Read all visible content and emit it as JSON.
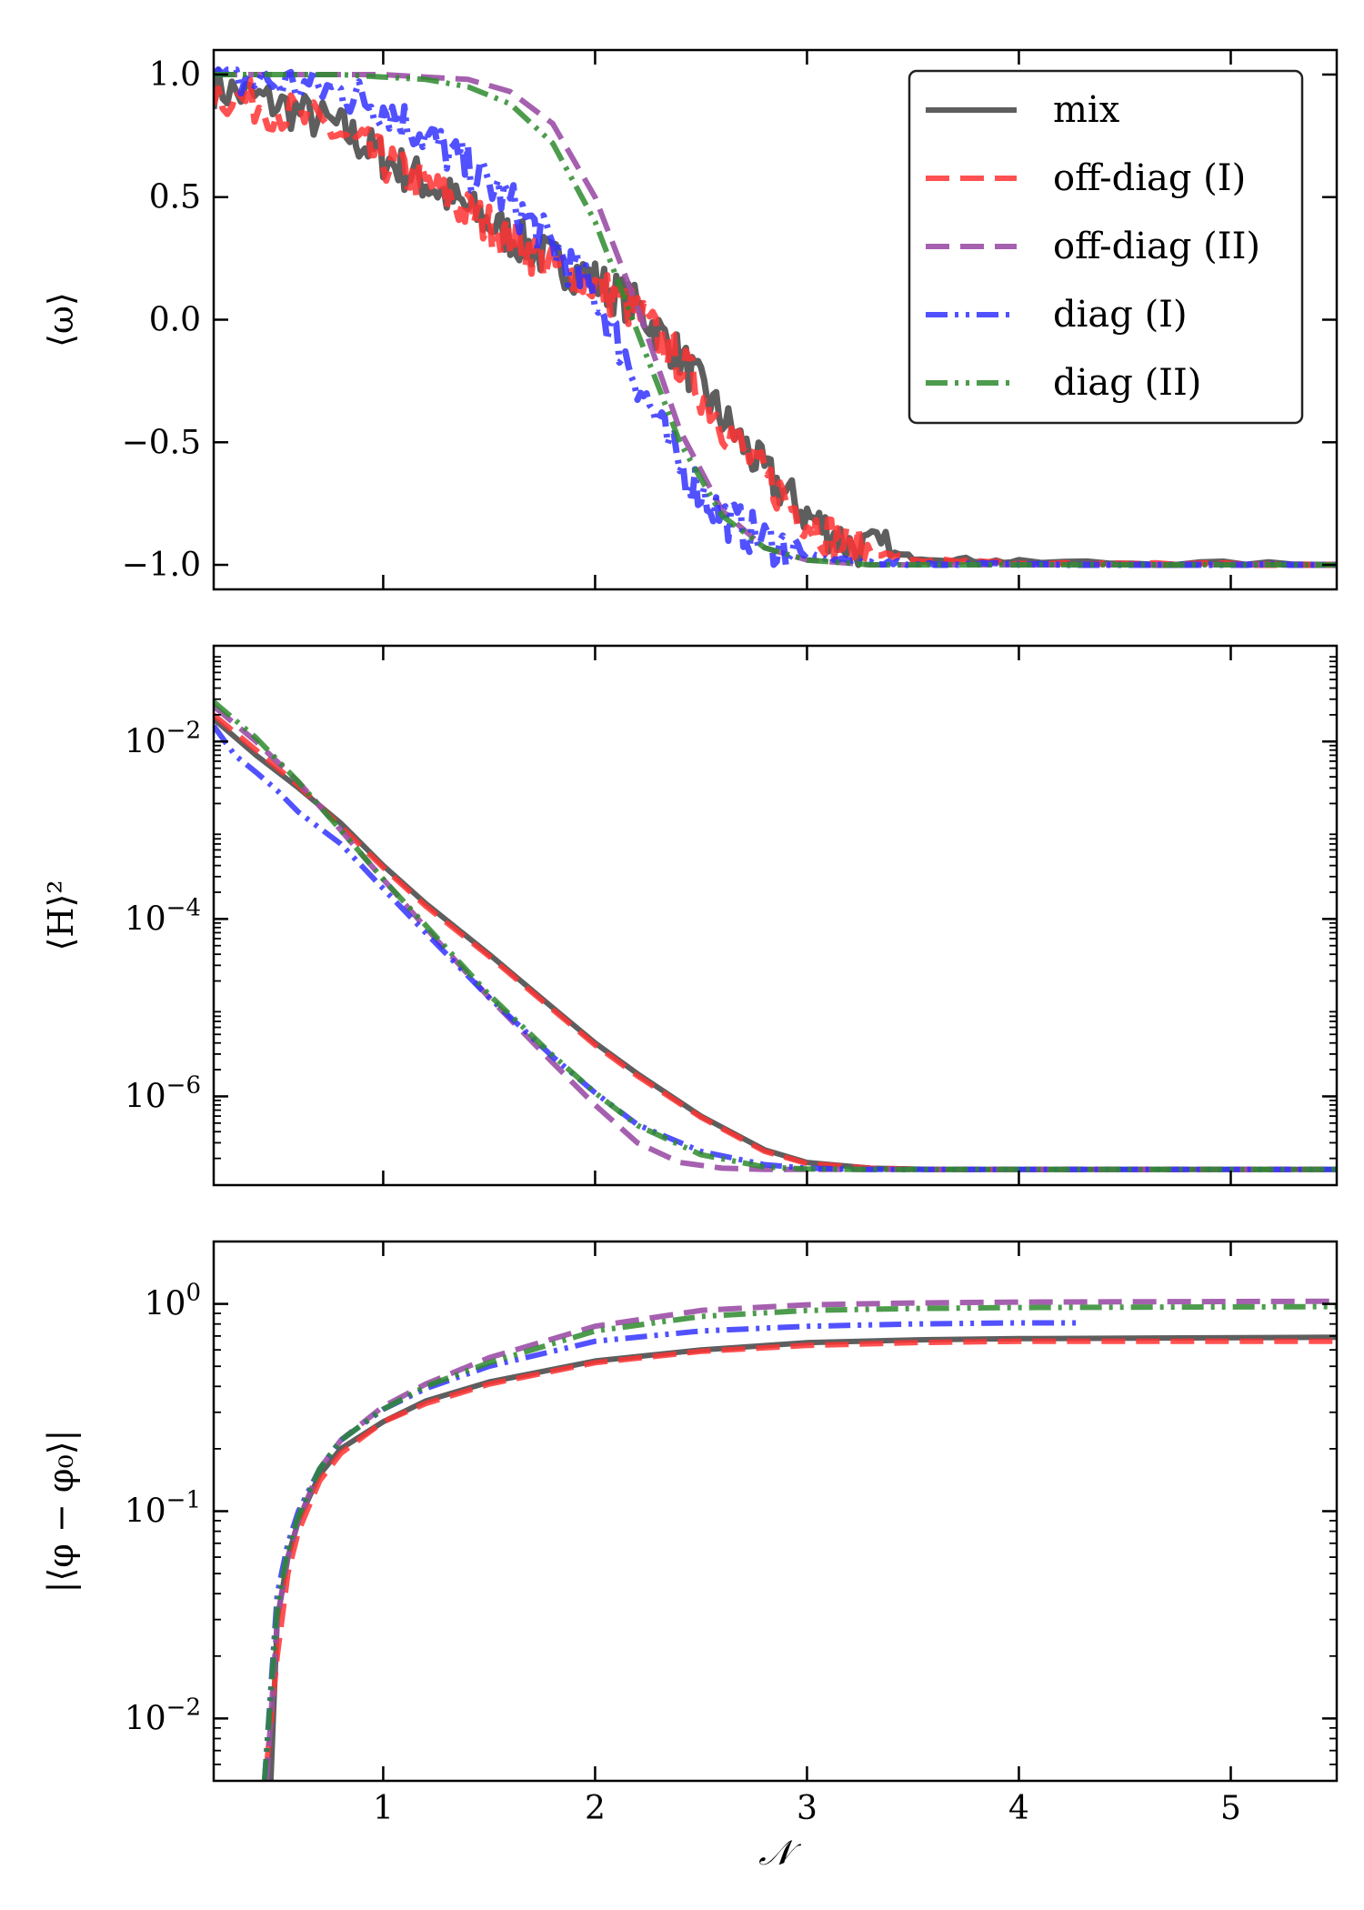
{
  "legend": {
    "entries": [
      {
        "series": "mix",
        "label": "mix"
      },
      {
        "series": "offdiag1",
        "label": "off-diag (I)"
      },
      {
        "series": "offdiag2",
        "label": "off-diag (II)"
      },
      {
        "series": "diag1",
        "label": "diag (I)"
      },
      {
        "series": "diag2",
        "label": "diag (II)"
      }
    ]
  },
  "series_styles": {
    "mix": {
      "color": "#4d4d4d",
      "dash": "solid",
      "alpha": 0.9
    },
    "offdiag1": {
      "color": "#ff3333",
      "dash": "dashed",
      "alpha": 0.85
    },
    "offdiag2": {
      "color": "#9b4fa6",
      "dash": "dashed",
      "alpha": 0.9
    },
    "diag1": {
      "color": "#3333ff",
      "dash": "dashdotdot",
      "alpha": 0.85
    },
    "diag2": {
      "color": "#2e8b2e",
      "dash": "dashdotdot",
      "alpha": 0.85
    }
  },
  "chart_data": [
    {
      "type": "line",
      "panel": "top",
      "ylabel": "⟨ω⟩",
      "xlabel": "",
      "xlim": [
        0.2,
        5.5
      ],
      "ylim": [
        -1.1,
        1.1
      ],
      "yscale": "linear",
      "yticks": [
        1.0,
        0.5,
        0.0,
        -0.5,
        -1.0
      ],
      "ytick_labels": [
        "1.0",
        "0.5",
        "0.0",
        "−0.5",
        "−1.0"
      ],
      "xticks": [
        1,
        2,
        3,
        4,
        5
      ],
      "xtick_labels": [
        "",
        "",
        "",
        "",
        ""
      ],
      "noise_note": "curves for mix, off-diag (I) and diag (I) are visibly jagged",
      "series": [
        {
          "key": "mix",
          "noisy": true,
          "x": [
            0.2,
            0.5,
            0.8,
            1.0,
            1.2,
            1.4,
            1.6,
            1.8,
            2.0,
            2.2,
            2.4,
            2.6,
            2.8,
            3.0,
            3.2,
            3.5,
            4.0,
            5.5
          ],
          "y": [
            0.95,
            0.88,
            0.78,
            0.66,
            0.56,
            0.45,
            0.34,
            0.24,
            0.16,
            0.05,
            -0.15,
            -0.4,
            -0.62,
            -0.8,
            -0.92,
            -0.97,
            -0.99,
            -1.0
          ]
        },
        {
          "key": "offdiag1",
          "noisy": true,
          "x": [
            0.2,
            0.5,
            0.8,
            1.0,
            1.2,
            1.4,
            1.6,
            1.8,
            2.0,
            2.2,
            2.4,
            2.6,
            2.8,
            3.0,
            3.2,
            3.5,
            4.0,
            5.5
          ],
          "y": [
            0.93,
            0.86,
            0.76,
            0.65,
            0.55,
            0.44,
            0.33,
            0.22,
            0.14,
            0.03,
            -0.17,
            -0.42,
            -0.64,
            -0.82,
            -0.93,
            -0.98,
            -1.0,
            -1.0
          ]
        },
        {
          "key": "offdiag2",
          "noisy": false,
          "x": [
            0.2,
            0.5,
            0.8,
            1.0,
            1.2,
            1.4,
            1.6,
            1.8,
            2.0,
            2.2,
            2.4,
            2.6,
            2.8,
            3.0,
            3.3,
            3.6,
            4.0,
            5.5
          ],
          "y": [
            1.0,
            1.0,
            1.0,
            1.0,
            0.99,
            0.98,
            0.93,
            0.8,
            0.5,
            0.05,
            -0.45,
            -0.78,
            -0.93,
            -0.98,
            -1.0,
            -1.0,
            -1.0,
            -1.0
          ]
        },
        {
          "key": "diag1",
          "noisy": true,
          "x": [
            0.2,
            0.5,
            0.8,
            1.0,
            1.2,
            1.4,
            1.6,
            1.8,
            2.0,
            2.2,
            2.4,
            2.6,
            2.8,
            3.0,
            3.3,
            3.6,
            4.0,
            5.5
          ],
          "y": [
            0.98,
            0.97,
            0.93,
            0.87,
            0.75,
            0.62,
            0.48,
            0.3,
            0.1,
            -0.25,
            -0.6,
            -0.8,
            -0.9,
            -0.96,
            -0.99,
            -1.0,
            -1.0,
            -1.0
          ]
        },
        {
          "key": "diag2",
          "noisy": false,
          "x": [
            0.2,
            0.5,
            0.8,
            1.0,
            1.2,
            1.4,
            1.6,
            1.8,
            2.0,
            2.2,
            2.4,
            2.6,
            2.8,
            3.0,
            3.3,
            3.6,
            4.0,
            5.5
          ],
          "y": [
            1.0,
            1.0,
            1.0,
            0.99,
            0.98,
            0.95,
            0.88,
            0.72,
            0.4,
            -0.05,
            -0.5,
            -0.8,
            -0.93,
            -0.98,
            -1.0,
            -1.0,
            -1.0,
            -1.0
          ]
        }
      ]
    },
    {
      "type": "line",
      "panel": "middle",
      "ylabel": "⟨H⟩²",
      "xlabel": "",
      "xlim": [
        0.2,
        5.5
      ],
      "ylim": [
        1e-07,
        0.12
      ],
      "yscale": "log",
      "yticks": [
        0.01,
        0.0001,
        1e-06
      ],
      "ytick_labels": [
        {
          "base": "10",
          "exp": "−2"
        },
        {
          "base": "10",
          "exp": "−4"
        },
        {
          "base": "10",
          "exp": "−6"
        }
      ],
      "xticks": [
        1,
        2,
        3,
        4,
        5
      ],
      "xtick_labels": [
        "",
        "",
        "",
        "",
        ""
      ],
      "series": [
        {
          "key": "mix",
          "x": [
            0.2,
            0.4,
            0.6,
            0.8,
            1.0,
            1.2,
            1.5,
            1.8,
            2.0,
            2.2,
            2.5,
            2.8,
            3.0,
            3.3,
            3.6,
            4.0,
            5.5
          ],
          "y": [
            0.018,
            0.007,
            0.003,
            0.0012,
            0.0004,
            0.00015,
            4e-05,
            1e-05,
            4e-06,
            1.8e-06,
            6e-07,
            2.5e-07,
            1.8e-07,
            1.55e-07,
            1.5e-07,
            1.5e-07,
            1.5e-07
          ]
        },
        {
          "key": "offdiag1",
          "x": [
            0.2,
            0.4,
            0.6,
            0.8,
            1.0,
            1.2,
            1.5,
            1.8,
            2.0,
            2.2,
            2.5,
            2.8,
            3.0,
            3.3,
            3.6,
            4.0,
            5.5
          ],
          "y": [
            0.02,
            0.008,
            0.0032,
            0.0011,
            0.00038,
            0.00014,
            3.8e-05,
            9.5e-06,
            3.8e-06,
            1.7e-06,
            5.8e-07,
            2.4e-07,
            1.75e-07,
            1.55e-07,
            1.5e-07,
            1.5e-07,
            1.5e-07
          ]
        },
        {
          "key": "offdiag2",
          "x": [
            0.2,
            0.4,
            0.6,
            0.8,
            1.0,
            1.2,
            1.5,
            1.8,
            2.0,
            2.2,
            2.4,
            2.6,
            2.8,
            3.0,
            3.5,
            5.5
          ],
          "y": [
            0.025,
            0.01,
            0.0035,
            0.001,
            0.00028,
            8e-05,
            1.3e-05,
            2.4e-06,
            8e-07,
            3e-07,
            1.8e-07,
            1.55e-07,
            1.5e-07,
            1.5e-07,
            1.5e-07,
            1.5e-07
          ]
        },
        {
          "key": "diag1",
          "x": [
            0.2,
            0.3,
            0.4,
            0.5,
            0.6,
            0.8,
            1.0,
            1.2,
            1.5,
            1.8,
            2.0,
            2.2,
            2.5,
            2.8,
            3.0,
            3.3,
            3.6,
            4.0,
            5.5
          ],
          "y": [
            0.015,
            0.007,
            0.0045,
            0.0028,
            0.0016,
            0.0007,
            0.00022,
            7e-05,
            1.3e-05,
            2.8e-06,
            1.1e-06,
            4.8e-07,
            2.4e-07,
            1.7e-07,
            1.55e-07,
            1.5e-07,
            1.5e-07,
            1.5e-07,
            1.5e-07
          ]
        },
        {
          "key": "diag2",
          "x": [
            0.2,
            0.4,
            0.6,
            0.8,
            1.0,
            1.2,
            1.5,
            1.8,
            2.0,
            2.2,
            2.5,
            2.8,
            3.0,
            3.3,
            3.6,
            5.5
          ],
          "y": [
            0.028,
            0.011,
            0.0035,
            0.001,
            0.00028,
            8.5e-05,
            1.4e-05,
            2.9e-06,
            1.1e-06,
            4.7e-07,
            2.2e-07,
            1.6e-07,
            1.52e-07,
            1.5e-07,
            1.5e-07,
            1.5e-07
          ]
        }
      ]
    },
    {
      "type": "line",
      "panel": "bottom",
      "ylabel": "|⟨φ − φ₀⟩|",
      "xlabel": "𝒩",
      "xlim": [
        0.2,
        5.5
      ],
      "ylim": [
        0.005,
        2.0
      ],
      "yscale": "log",
      "yticks": [
        1.0,
        0.1,
        0.01
      ],
      "ytick_labels": [
        {
          "base": "10",
          "exp": "0"
        },
        {
          "base": "10",
          "exp": "−1"
        },
        {
          "base": "10",
          "exp": "−2"
        }
      ],
      "xticks": [
        1,
        2,
        3,
        4,
        5
      ],
      "xtick_labels": [
        "1",
        "2",
        "3",
        "4",
        "5"
      ],
      "series": [
        {
          "key": "mix",
          "x": [
            0.47,
            0.5,
            0.55,
            0.6,
            0.7,
            0.8,
            1.0,
            1.2,
            1.5,
            2.0,
            2.5,
            3.0,
            3.5,
            4.0,
            5.5
          ],
          "y": [
            0.005,
            0.03,
            0.06,
            0.09,
            0.15,
            0.2,
            0.27,
            0.34,
            0.42,
            0.53,
            0.6,
            0.65,
            0.67,
            0.68,
            0.69
          ]
        },
        {
          "key": "offdiag1",
          "x": [
            0.45,
            0.5,
            0.55,
            0.6,
            0.7,
            0.8,
            1.0,
            1.2,
            1.5,
            2.0,
            2.5,
            3.0,
            3.5,
            4.0,
            5.5
          ],
          "y": [
            0.006,
            0.02,
            0.05,
            0.08,
            0.14,
            0.19,
            0.27,
            0.33,
            0.41,
            0.52,
            0.59,
            0.63,
            0.65,
            0.66,
            0.66
          ]
        },
        {
          "key": "offdiag2",
          "x": [
            0.45,
            0.5,
            0.55,
            0.6,
            0.7,
            0.8,
            1.0,
            1.2,
            1.5,
            2.0,
            2.5,
            3.0,
            3.5,
            4.0,
            5.5
          ],
          "y": [
            0.005,
            0.03,
            0.06,
            0.09,
            0.16,
            0.22,
            0.32,
            0.41,
            0.55,
            0.78,
            0.93,
            0.99,
            1.01,
            1.02,
            1.03
          ]
        },
        {
          "key": "diag1",
          "x": [
            0.44,
            0.5,
            0.55,
            0.6,
            0.7,
            0.8,
            1.0,
            1.2,
            1.5,
            2.0,
            2.5,
            3.0,
            3.5,
            4.0,
            4.3
          ],
          "y": [
            0.005,
            0.04,
            0.07,
            0.1,
            0.16,
            0.22,
            0.31,
            0.39,
            0.5,
            0.66,
            0.74,
            0.78,
            0.8,
            0.81,
            0.81
          ]
        },
        {
          "key": "diag2",
          "x": [
            0.44,
            0.5,
            0.55,
            0.6,
            0.7,
            0.8,
            1.0,
            1.2,
            1.5,
            2.0,
            2.5,
            3.0,
            3.5,
            4.0,
            5.5
          ],
          "y": [
            0.005,
            0.035,
            0.065,
            0.095,
            0.16,
            0.22,
            0.31,
            0.4,
            0.52,
            0.74,
            0.87,
            0.93,
            0.95,
            0.96,
            0.97
          ]
        }
      ]
    }
  ]
}
